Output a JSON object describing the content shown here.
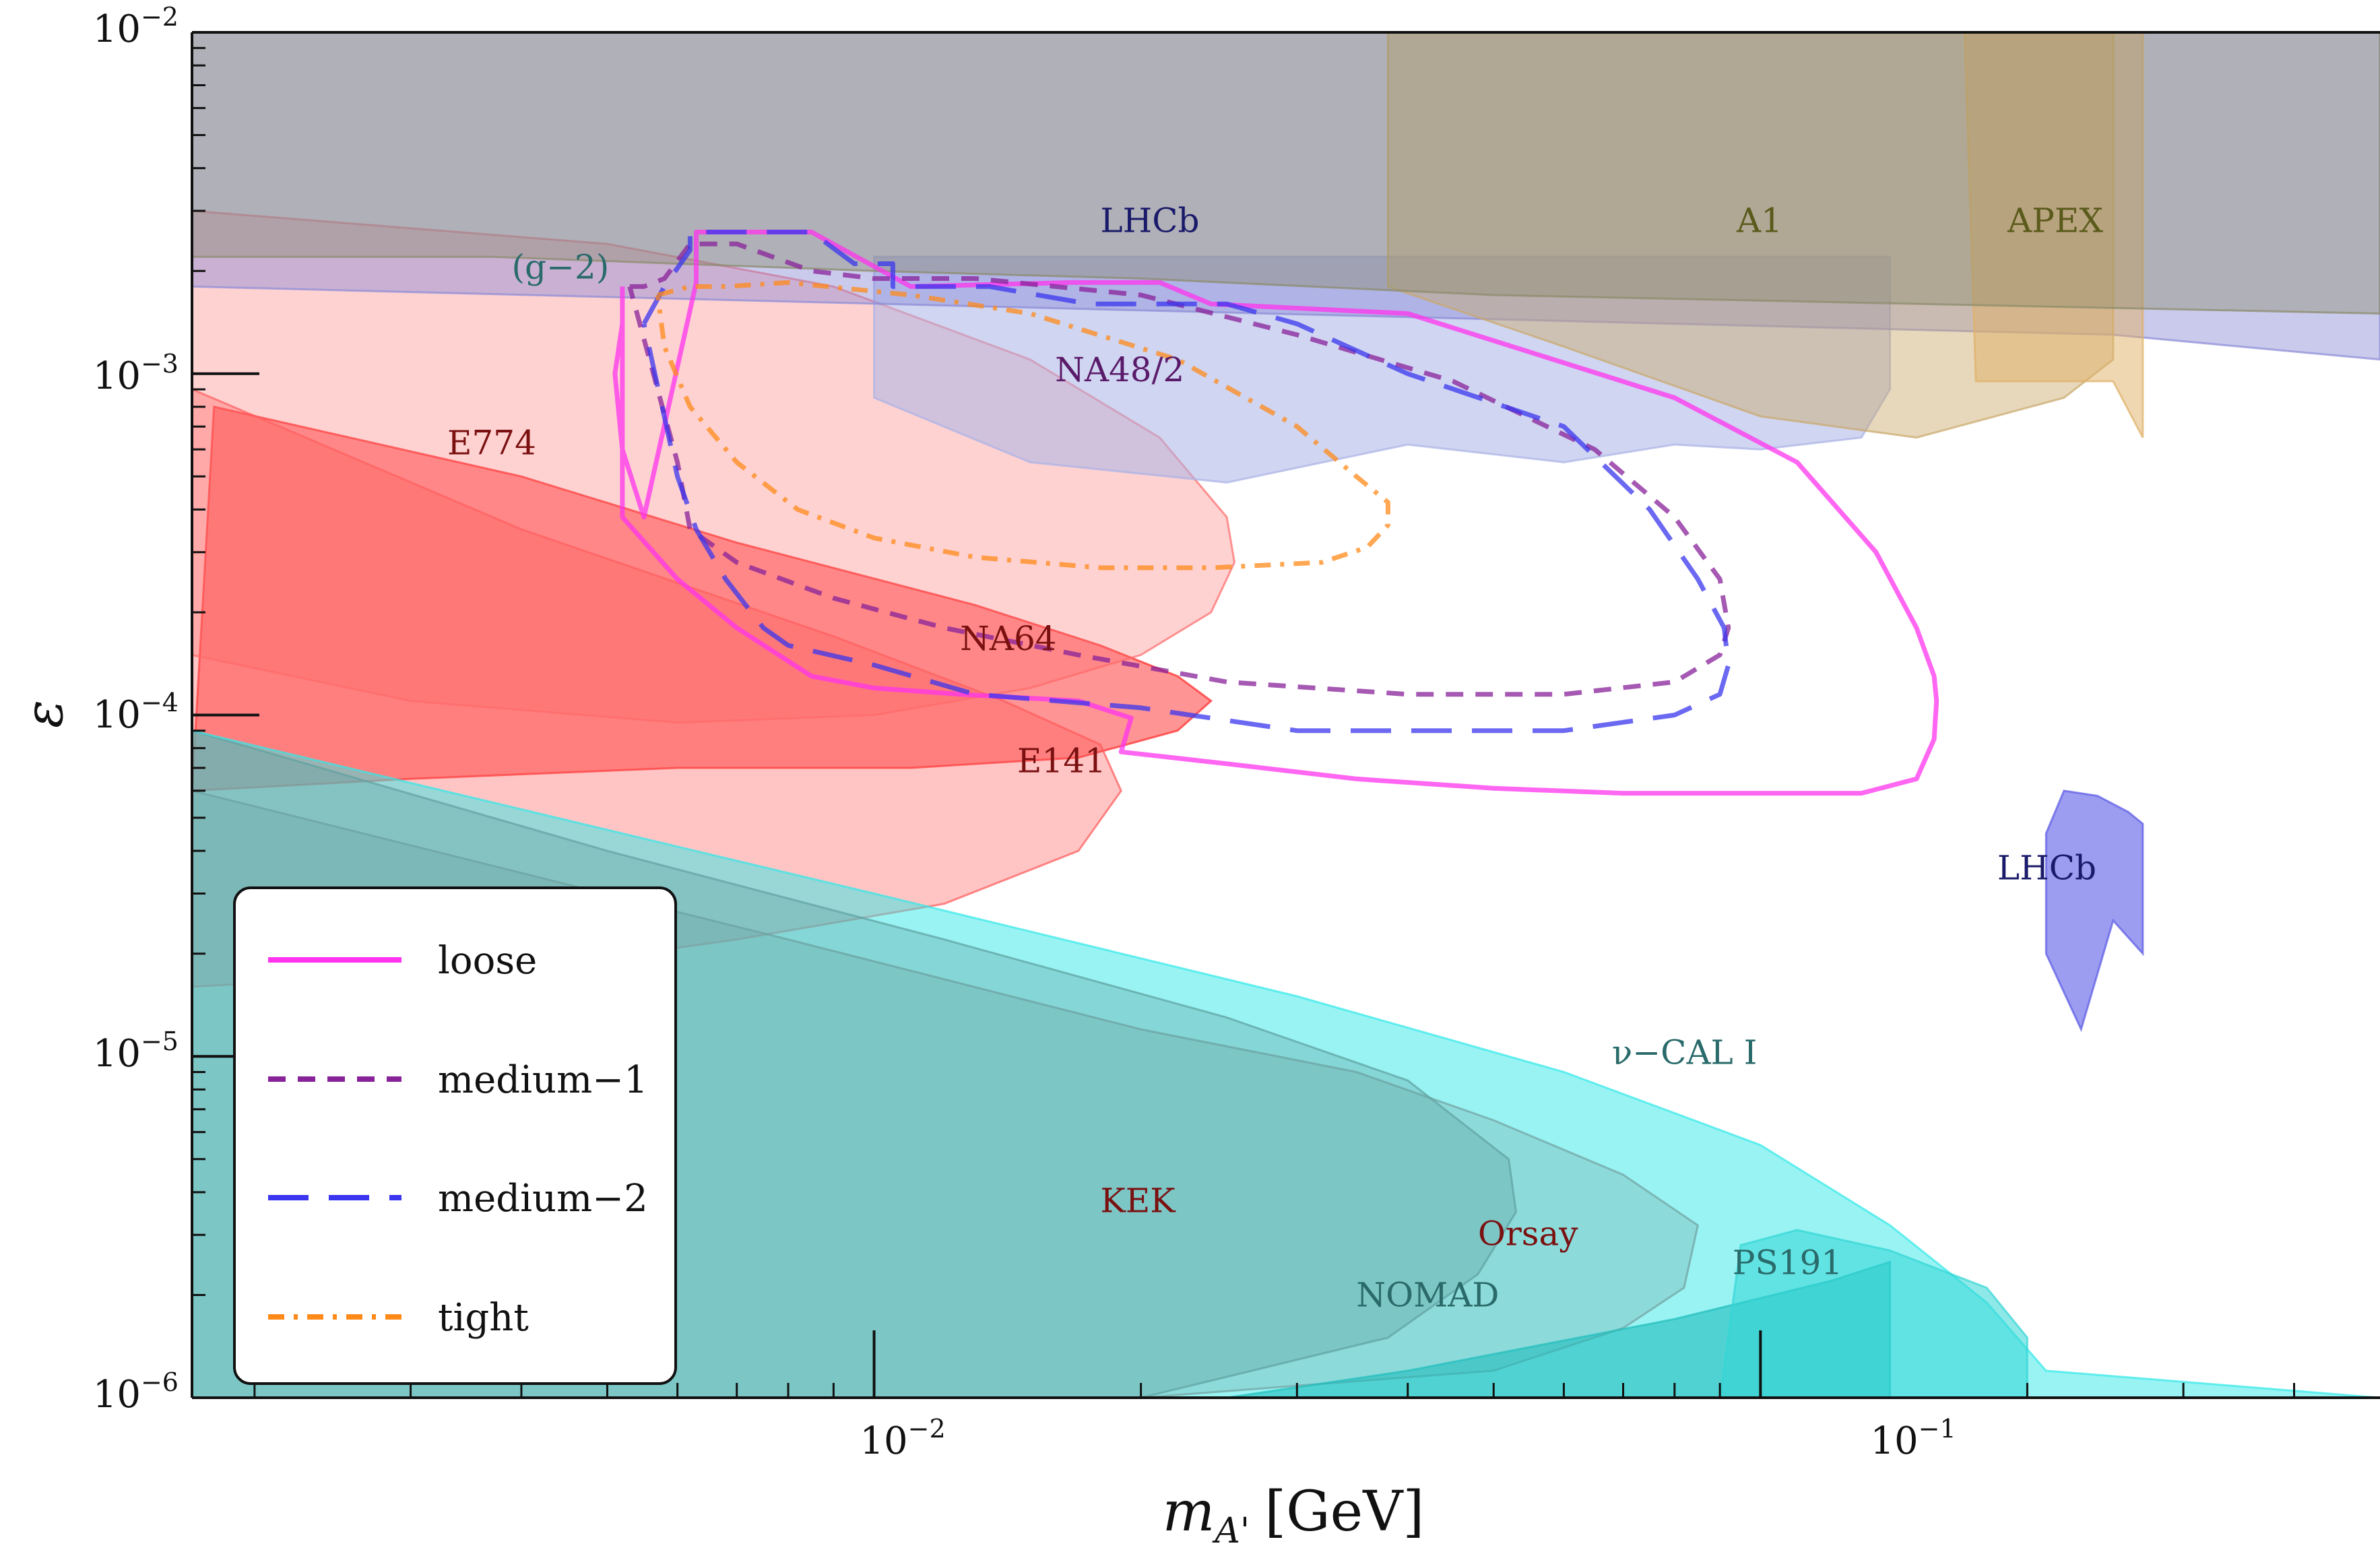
{
  "chart_data": {
    "type": "area",
    "xlabel": "m",
    "xlabel_sub": "A'",
    "xlabel_unit": "[GeV]",
    "ylabel": "ε",
    "xlim": [
      0.0017,
      0.5
    ],
    "ylim": [
      1e-06,
      0.01
    ],
    "xscale": "log",
    "yscale": "log",
    "x_ticks": [
      {
        "value": 0.01,
        "base": "10",
        "exp": "−2"
      },
      {
        "value": 0.1,
        "base": "10",
        "exp": "−1"
      }
    ],
    "y_ticks": [
      {
        "value": 0.01,
        "base": "10",
        "exp": "−2"
      },
      {
        "value": 0.001,
        "base": "10",
        "exp": "−3"
      },
      {
        "value": 0.0001,
        "base": "10",
        "exp": "−4"
      },
      {
        "value": 1e-05,
        "base": "10",
        "exp": "−5"
      },
      {
        "value": 1e-06,
        "base": "10",
        "exp": "−6"
      }
    ],
    "legend_position": "lower-left",
    "series": [
      {
        "name": "loose",
        "color": "#ff33ee",
        "dash": "solid",
        "x": [
          0.0052,
          0.0052,
          0.0051,
          0.0052,
          0.0055,
          0.0063,
          0.0063,
          0.0085,
          0.011,
          0.0167,
          0.021,
          0.024,
          0.04,
          0.08,
          0.11,
          0.135,
          0.15,
          0.157,
          0.158,
          0.157,
          0.15,
          0.13,
          0.1,
          0.07,
          0.05,
          0.035,
          0.025,
          0.019,
          0.0195,
          0.017,
          0.0125,
          0.01,
          0.0085,
          0.007,
          0.006,
          0.0052
        ],
        "y": [
          0.0018,
          0.0014,
          0.001,
          0.0006,
          0.00038,
          0.00185,
          0.0026,
          0.0026,
          0.0018,
          0.00185,
          0.00185,
          0.0016,
          0.0015,
          0.00085,
          0.00055,
          0.0003,
          0.00018,
          0.00013,
          0.00011,
          8.5e-05,
          6.5e-05,
          5.9e-05,
          5.9e-05,
          5.9e-05,
          6.1e-05,
          6.5e-05,
          7.2e-05,
          7.8e-05,
          9.8e-05,
          0.00011,
          0.000115,
          0.00012,
          0.00013,
          0.00018,
          0.00025,
          0.00038
        ]
      },
      {
        "name": "medium−1",
        "color": "#882299",
        "dash": "short",
        "x": [
          0.0053,
          0.0055,
          0.0058,
          0.0062,
          0.007,
          0.0085,
          0.01,
          0.013,
          0.02,
          0.03,
          0.045,
          0.065,
          0.08,
          0.09,
          0.092,
          0.09,
          0.08,
          0.06,
          0.04,
          0.025,
          0.017,
          0.012,
          0.009,
          0.007,
          0.0062,
          0.006
        ],
        "y": [
          0.0018,
          0.0018,
          0.0019,
          0.0024,
          0.0024,
          0.002,
          0.0019,
          0.0019,
          0.0017,
          0.0013,
          0.00095,
          0.0006,
          0.00038,
          0.00025,
          0.00018,
          0.00015,
          0.000125,
          0.000115,
          0.000115,
          0.000125,
          0.00015,
          0.00018,
          0.00022,
          0.00028,
          0.00035,
          0.00055
        ]
      },
      {
        "name": "medium−2",
        "color": "#3a35ee",
        "dash": "long",
        "x": [
          0.0055,
          0.0058,
          0.0062,
          0.0062,
          0.0085,
          0.0095,
          0.0105,
          0.0105,
          0.0113,
          0.0135,
          0.0175,
          0.025,
          0.03,
          0.04,
          0.06,
          0.075,
          0.085,
          0.091,
          0.092,
          0.09,
          0.08,
          0.06,
          0.045,
          0.03,
          0.02,
          0.013,
          0.01,
          0.008,
          0.0075,
          0.0068,
          0.0063,
          0.006
        ],
        "y": [
          0.0014,
          0.0018,
          0.0023,
          0.0026,
          0.0026,
          0.0021,
          0.0021,
          0.0018,
          0.0018,
          0.0018,
          0.0016,
          0.0016,
          0.0014,
          0.001,
          0.0007,
          0.0004,
          0.00025,
          0.00018,
          0.00014,
          0.000115,
          0.0001,
          9e-05,
          9e-05,
          9e-05,
          0.000105,
          0.000115,
          0.00014,
          0.00016,
          0.00018,
          0.00025,
          0.00035,
          0.0005
        ]
      },
      {
        "name": "tight",
        "color": "#ff8a1a",
        "dash": "dashdot",
        "x": [
          0.0057,
          0.0062,
          0.0068,
          0.008,
          0.011,
          0.015,
          0.022,
          0.03,
          0.035,
          0.038,
          0.038,
          0.036,
          0.032,
          0.024,
          0.018,
          0.013,
          0.01,
          0.0082,
          0.007,
          0.0062,
          0.0058
        ],
        "y": [
          0.0017,
          0.0018,
          0.0018,
          0.00185,
          0.0017,
          0.0015,
          0.0011,
          0.0007,
          0.0005,
          0.00042,
          0.00036,
          0.00031,
          0.00028,
          0.00027,
          0.00027,
          0.00029,
          0.00033,
          0.0004,
          0.00055,
          0.0008,
          0.0012
        ]
      }
    ],
    "regions": [
      {
        "name": "E774",
        "color": "#ff2a2a",
        "opacity": 0.5,
        "label_at": [
          0.0033,
          0.00058
        ],
        "x": [
          0.0017,
          0.0018,
          0.004,
          0.007,
          0.013,
          0.018,
          0.022,
          0.024,
          0.022,
          0.017,
          0.011,
          0.006,
          0.003,
          0.0017
        ],
        "y": [
          6e-05,
          0.0008,
          0.0005,
          0.00032,
          0.00021,
          0.00016,
          0.00013,
          0.00011,
          9e-05,
          7.5e-05,
          7e-05,
          7e-05,
          6.5e-05,
          6e-05
        ]
      },
      {
        "name": "E141",
        "color": "#ff5a5a",
        "opacity": 0.35,
        "label_at": [
          0.0145,
          6.8e-05
        ],
        "x": [
          0.0017,
          0.004,
          0.009,
          0.014,
          0.018,
          0.019,
          0.017,
          0.012,
          0.007,
          0.004,
          0.0017
        ],
        "y": [
          0.0009,
          0.00035,
          0.00017,
          0.00011,
          8.2e-05,
          6e-05,
          4e-05,
          2.8e-05,
          2.2e-05,
          1.8e-05,
          1.6e-05
        ]
      },
      {
        "name": "NA64",
        "color": "#ff6a6a",
        "opacity": 0.3,
        "label_at": [
          0.0125,
          0.000155
        ],
        "x": [
          0.0017,
          0.0017,
          0.005,
          0.009,
          0.015,
          0.021,
          0.025,
          0.0255,
          0.024,
          0.02,
          0.015,
          0.01,
          0.006,
          0.003,
          0.0017
        ],
        "y": [
          0.00015,
          0.003,
          0.0024,
          0.0018,
          0.0011,
          0.00065,
          0.00038,
          0.00028,
          0.0002,
          0.00015,
          0.00012,
          0.0001,
          9.5e-05,
          0.00011,
          0.00015
        ]
      },
      {
        "name": "Orsay",
        "color": "#b05a5a",
        "opacity": 0.3,
        "label_at": [
          0.048,
          2.8e-06
        ],
        "x": [
          0.0017,
          0.008,
          0.02,
          0.035,
          0.05,
          0.07,
          0.085,
          0.082,
          0.07,
          0.05,
          0.02,
          0.0017
        ],
        "y": [
          6e-05,
          2.2e-05,
          1.2e-05,
          9e-06,
          6.5e-06,
          4.5e-06,
          3.2e-06,
          2.1e-06,
          1.6e-06,
          1.2e-06,
          1e-06,
          1e-06
        ]
      },
      {
        "name": "KEK",
        "color": "#8a5a5a",
        "opacity": 0.35,
        "label_at": [
          0.018,
          3.5e-06
        ],
        "x": [
          0.0017,
          0.005,
          0.012,
          0.025,
          0.04,
          0.052,
          0.053,
          0.048,
          0.038,
          0.02,
          0.0017
        ],
        "y": [
          9e-05,
          4e-05,
          2.2e-05,
          1.3e-05,
          8.5e-06,
          5e-06,
          3.5e-06,
          2.3e-06,
          1.5e-06,
          1e-06,
          1e-06
        ]
      },
      {
        "name": "ν−CAL I",
        "color": "#33e8e8",
        "opacity": 0.5,
        "label_at": [
          0.068,
          9.5e-06
        ],
        "x": [
          0.0017,
          0.01,
          0.03,
          0.06,
          0.1,
          0.14,
          0.18,
          0.21,
          0.5,
          0.5,
          0.0017
        ],
        "y": [
          9e-05,
          3e-05,
          1.5e-05,
          9e-06,
          5.5e-06,
          3.2e-06,
          1.9e-06,
          1.2e-06,
          1e-06,
          1e-06,
          1e-06
        ]
      },
      {
        "name": "NOMAD",
        "color": "#22bdbd",
        "opacity": 0.6,
        "label_at": [
          0.035,
          1.85e-06
        ],
        "x": [
          0.025,
          0.04,
          0.08,
          0.12,
          0.14,
          0.14,
          0.025
        ],
        "y": [
          1e-06,
          1.2e-06,
          1.7e-06,
          2.2e-06,
          2.5e-06,
          1e-06,
          1e-06
        ]
      },
      {
        "name": "PS191",
        "color": "#33d6d6",
        "opacity": 0.55,
        "label_at": [
          0.093,
          2.3e-06
        ],
        "x": [
          0.09,
          0.095,
          0.11,
          0.14,
          0.18,
          0.2,
          0.2,
          0.09
        ],
        "y": [
          1e-06,
          2.8e-06,
          3.1e-06,
          2.7e-06,
          2.1e-06,
          1.5e-06,
          1e-06,
          1e-06
        ]
      },
      {
        "name": "NA48/2",
        "color": "#aab2e6",
        "opacity": 0.55,
        "label_at": [
          0.016,
          0.00095
        ],
        "x": [
          0.01,
          0.015,
          0.025,
          0.04,
          0.06,
          0.08,
          0.1,
          0.13,
          0.14,
          0.14,
          0.01
        ],
        "y": [
          0.00085,
          0.00055,
          0.00048,
          0.00062,
          0.00055,
          0.00062,
          0.0006,
          0.00065,
          0.0009,
          0.0022,
          0.0022
        ]
      },
      {
        "name": "LHCb",
        "color": "#8a8ad6",
        "opacity": 0.45,
        "label_at": [
          0.018,
          0.0026
        ],
        "x": [
          0.0017,
          0.25,
          0.5,
          0.5,
          0.0017
        ],
        "y": [
          0.0018,
          0.0013,
          0.0011,
          0.01,
          0.01
        ]
      },
      {
        "name": "A1",
        "color": "#c9a86a",
        "opacity": 0.45,
        "label_at": [
          0.094,
          0.0026
        ],
        "x": [
          0.038,
          0.06,
          0.1,
          0.15,
          0.22,
          0.25,
          0.25,
          0.038
        ],
        "y": [
          0.0018,
          0.0012,
          0.00075,
          0.00065,
          0.00085,
          0.0011,
          0.01,
          0.01
        ]
      },
      {
        "name": "APEX",
        "color": "#e0b066",
        "opacity": 0.5,
        "label_at": [
          0.19,
          0.0026
        ],
        "x": [
          0.17,
          0.175,
          0.25,
          0.27,
          0.27,
          0.25,
          0.17
        ],
        "y": [
          0.01,
          0.00095,
          0.00095,
          0.00065,
          0.01,
          0.01,
          0.01
        ]
      },
      {
        "name": "(g−2)",
        "color": "#8a8a6a",
        "opacity": 0.4,
        "label_at": [
          0.0039,
          0.0019
        ],
        "x": [
          0.0017,
          0.0037,
          0.006,
          0.01,
          0.02,
          0.05,
          0.5,
          0.5,
          0.0017
        ],
        "y": [
          0.0022,
          0.0022,
          0.0021,
          0.002,
          0.0019,
          0.0017,
          0.0015,
          0.01,
          0.01
        ]
      },
      {
        "name": "LHCb",
        "color": "#5a5ae6",
        "opacity": 0.6,
        "label_at": [
          0.185,
          3.3e-05
        ],
        "x": [
          0.21,
          0.22,
          0.24,
          0.26,
          0.27,
          0.27,
          0.25,
          0.23,
          0.21
        ],
        "y": [
          4.5e-05,
          6e-05,
          5.8e-05,
          5.2e-05,
          4.8e-05,
          2e-05,
          2.5e-05,
          1.2e-05,
          2e-05
        ]
      }
    ]
  },
  "label_colors": {
    "E774": "#7a1010",
    "E141": "#7a1010",
    "NA64": "#7a1010",
    "Orsay": "#7a1010",
    "KEK": "#7a1010",
    "nuCAL": "#2a6a6a",
    "NOMAD": "#2a6a6a",
    "PS191": "#2a6a6a",
    "NA48": "#5a1a6a",
    "LHCb": "#1a1a6a",
    "A1": "#5a5a1a",
    "APEX": "#5a5a1a",
    "g2": "#2a6a6a"
  }
}
